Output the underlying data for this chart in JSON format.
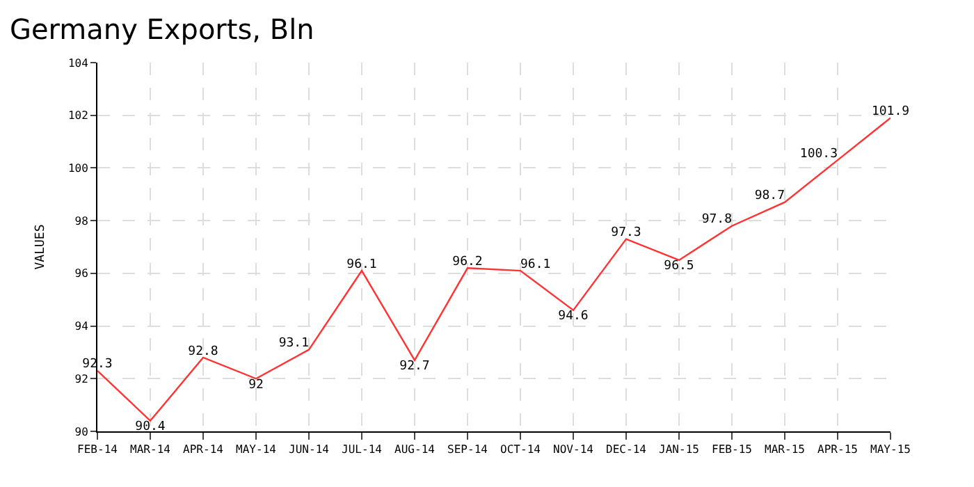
{
  "chart_data": {
    "type": "line",
    "title": "Germany Exports, Bln",
    "ylabel": "VALUES",
    "categories": [
      "FEB-14",
      "MAR-14",
      "APR-14",
      "MAY-14",
      "JUN-14",
      "JUL-14",
      "AUG-14",
      "SEP-14",
      "OCT-14",
      "NOV-14",
      "DEC-14",
      "JAN-15",
      "FEB-15",
      "MAR-15",
      "APR-15",
      "MAY-15"
    ],
    "series": [
      {
        "color": "#ff3333",
        "values": [
          92.3,
          90.4,
          92.8,
          92,
          93.1,
          96.1,
          92.7,
          96.2,
          96.1,
          94.6,
          97.3,
          96.5,
          97.8,
          98.7,
          100.3,
          101.9
        ]
      }
    ],
    "ylim": [
      90,
      104
    ],
    "yticks": [
      90,
      92,
      94,
      96,
      98,
      100,
      102,
      104
    ],
    "grid": true,
    "data_labels": true,
    "marker": "none",
    "line_style": "solid"
  }
}
